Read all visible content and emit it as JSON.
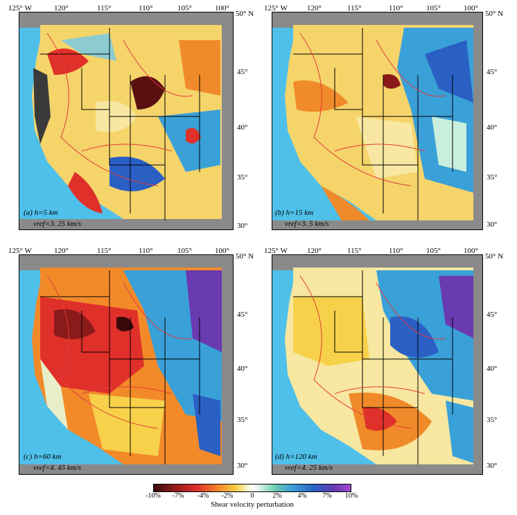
{
  "panels": [
    {
      "id": "a",
      "lon_labels": [
        "125° W",
        "120°",
        "115°",
        "110°",
        "105°",
        "100°"
      ],
      "lat_labels": [
        "50° N",
        "45°",
        "40°",
        "35°",
        "30°"
      ],
      "caption_line1": "(a)  h=5 km",
      "caption_line2": "vref=3. 25 km/s",
      "dominant_tone": "mixed red/blue"
    },
    {
      "id": "b",
      "lon_labels": [
        "125° W",
        "120°",
        "115°",
        "110°",
        "105°",
        "100°"
      ],
      "lat_labels": [
        "50° N",
        "45°",
        "40°",
        "35°",
        "30°"
      ],
      "caption_line1": "(b)  h=15 km",
      "caption_line2": "vref=3. 5 km/s",
      "dominant_tone": "yellow west, blue east"
    },
    {
      "id": "c",
      "lon_labels": [
        "125° W",
        "120°",
        "115°",
        "110°",
        "105°",
        "100°"
      ],
      "lat_labels": [
        "50° N",
        "45°",
        "40°",
        "35°",
        "30°"
      ],
      "caption_line1": "(c)  h=60 km",
      "caption_line2": "vref=4. 45 km/s",
      "dominant_tone": "red west, blue/purple east"
    },
    {
      "id": "d",
      "lon_labels": [
        "125° W",
        "120°",
        "115°",
        "110°",
        "105°",
        "100°"
      ],
      "lat_labels": [
        "50° N",
        "45°",
        "40°",
        "35°",
        "30°"
      ],
      "caption_line1": "(d)  h=120 km",
      "caption_line2": "vref=4. 25 km/s",
      "dominant_tone": "orange southwest, blue northeast"
    }
  ],
  "colorbar": {
    "ticks": [
      "-10%",
      "-7%",
      "-4%",
      "-2%",
      "0",
      "2%",
      "4%",
      "7%",
      "10%"
    ],
    "title": "Shear velocity perturbation",
    "colors": {
      "slow": "#3a0a0a",
      "mid_slow": "#e0302a",
      "neutral": "#ffffff",
      "mid_fast": "#3aa0d8",
      "fast": "#a34ad0"
    }
  },
  "map_colors": {
    "ocean": "#4fc0ea",
    "canada_mexico_gray": "#8a8a8a",
    "state_lines": "#000000",
    "province_lines": "#e23a3a"
  }
}
